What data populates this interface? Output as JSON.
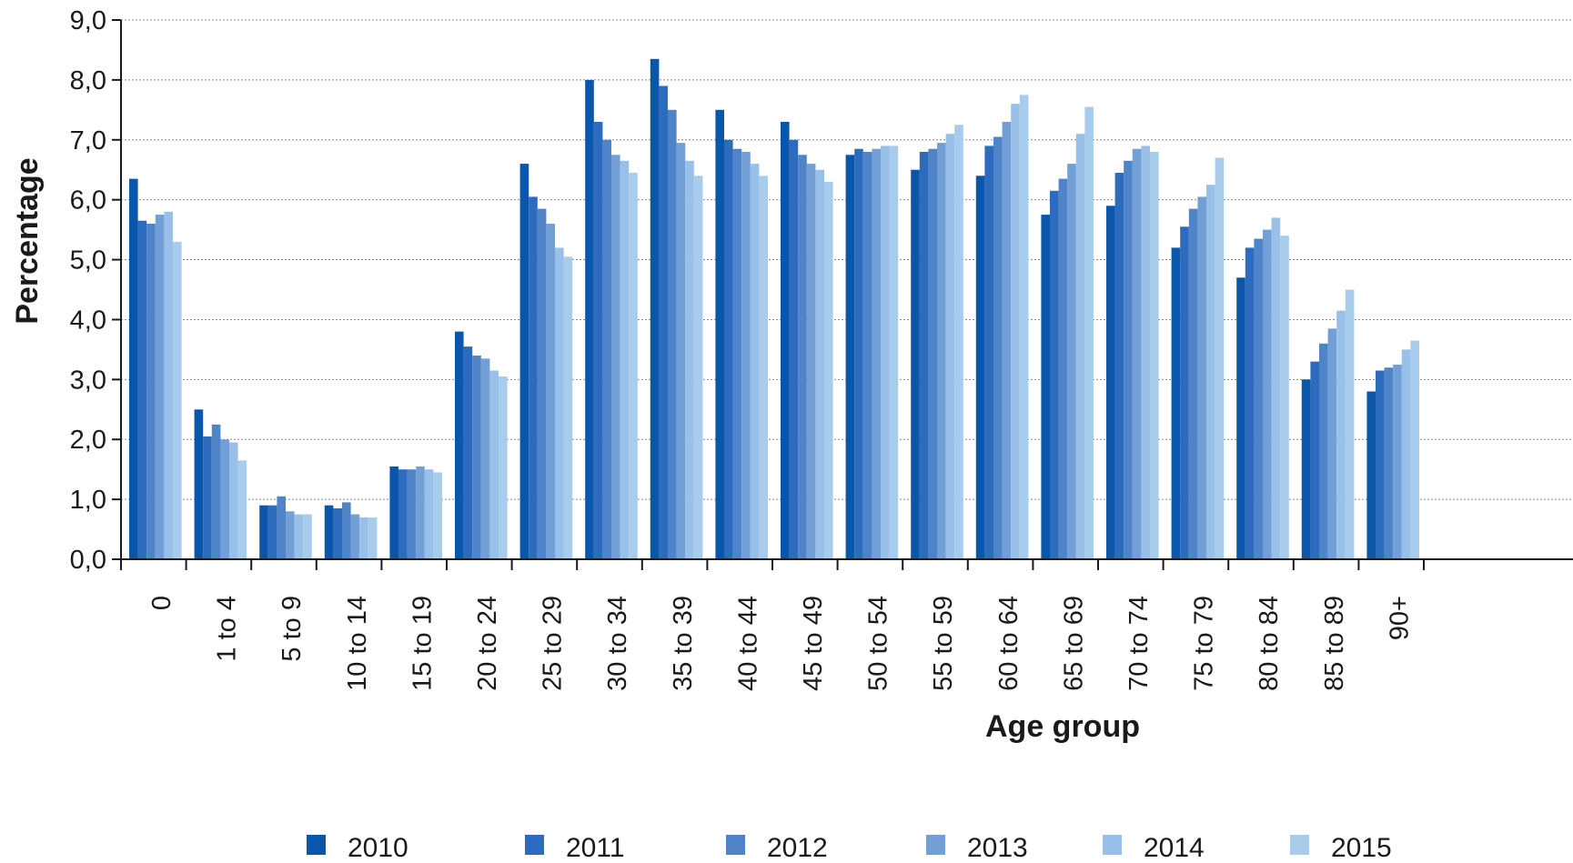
{
  "chart_data": {
    "type": "bar",
    "xlabel": "Age group",
    "ylabel": "Percentage",
    "ylim": [
      0,
      9
    ],
    "yticks": [
      "0,0",
      "1,0",
      "2,0",
      "3,0",
      "4,0",
      "5,0",
      "6,0",
      "7,0",
      "8,0",
      "9,0"
    ],
    "grid": true,
    "legend_position": "bottom",
    "categories": [
      "0",
      "1 to 4",
      "5 to 9",
      "10 to 14",
      "15 to 19",
      "20 to 24",
      "25 to 29",
      "30 to 34",
      "35 to 39",
      "40 to 44",
      "45 to 49",
      "50 to 54",
      "55 to 59",
      "60 to 64",
      "65 to 69",
      "70 to 74",
      "75 to 79",
      "80 to 84",
      "85 to 89",
      "90+"
    ],
    "series": [
      {
        "name": "2010",
        "color": "#0a56aa",
        "values": [
          6.35,
          2.5,
          0.9,
          0.9,
          1.55,
          3.8,
          6.6,
          8.0,
          8.35,
          7.5,
          7.3,
          6.75,
          6.5,
          6.4,
          5.75,
          5.9,
          5.2,
          4.7,
          3.0,
          2.8
        ]
      },
      {
        "name": "2011",
        "color": "#2c6bbd",
        "values": [
          5.65,
          2.05,
          0.9,
          0.85,
          1.5,
          3.55,
          6.05,
          7.3,
          7.9,
          7.0,
          7.0,
          6.85,
          6.8,
          6.9,
          6.15,
          6.45,
          5.55,
          5.2,
          3.3,
          3.15
        ]
      },
      {
        "name": "2012",
        "color": "#4f84c8",
        "values": [
          5.6,
          2.25,
          1.05,
          0.95,
          1.5,
          3.4,
          5.85,
          7.0,
          7.5,
          6.85,
          6.75,
          6.8,
          6.85,
          7.05,
          6.35,
          6.65,
          5.85,
          5.35,
          3.6,
          3.2
        ]
      },
      {
        "name": "2013",
        "color": "#729fd6",
        "values": [
          5.75,
          2.0,
          0.8,
          0.75,
          1.55,
          3.35,
          5.6,
          6.75,
          6.95,
          6.8,
          6.6,
          6.85,
          6.95,
          7.3,
          6.6,
          6.85,
          6.05,
          5.5,
          3.85,
          3.25
        ]
      },
      {
        "name": "2014",
        "color": "#99c0e8",
        "values": [
          5.8,
          1.95,
          0.75,
          0.7,
          1.5,
          3.15,
          5.2,
          6.65,
          6.65,
          6.6,
          6.5,
          6.9,
          7.1,
          7.6,
          7.1,
          6.9,
          6.25,
          5.7,
          4.15,
          3.5
        ]
      },
      {
        "name": "2015",
        "color": "#a8ccec",
        "values": [
          5.3,
          1.65,
          0.75,
          0.7,
          1.45,
          3.05,
          5.05,
          6.45,
          6.4,
          6.4,
          6.3,
          6.9,
          7.25,
          7.75,
          7.55,
          6.8,
          6.7,
          5.4,
          4.5,
          3.65
        ]
      }
    ]
  }
}
